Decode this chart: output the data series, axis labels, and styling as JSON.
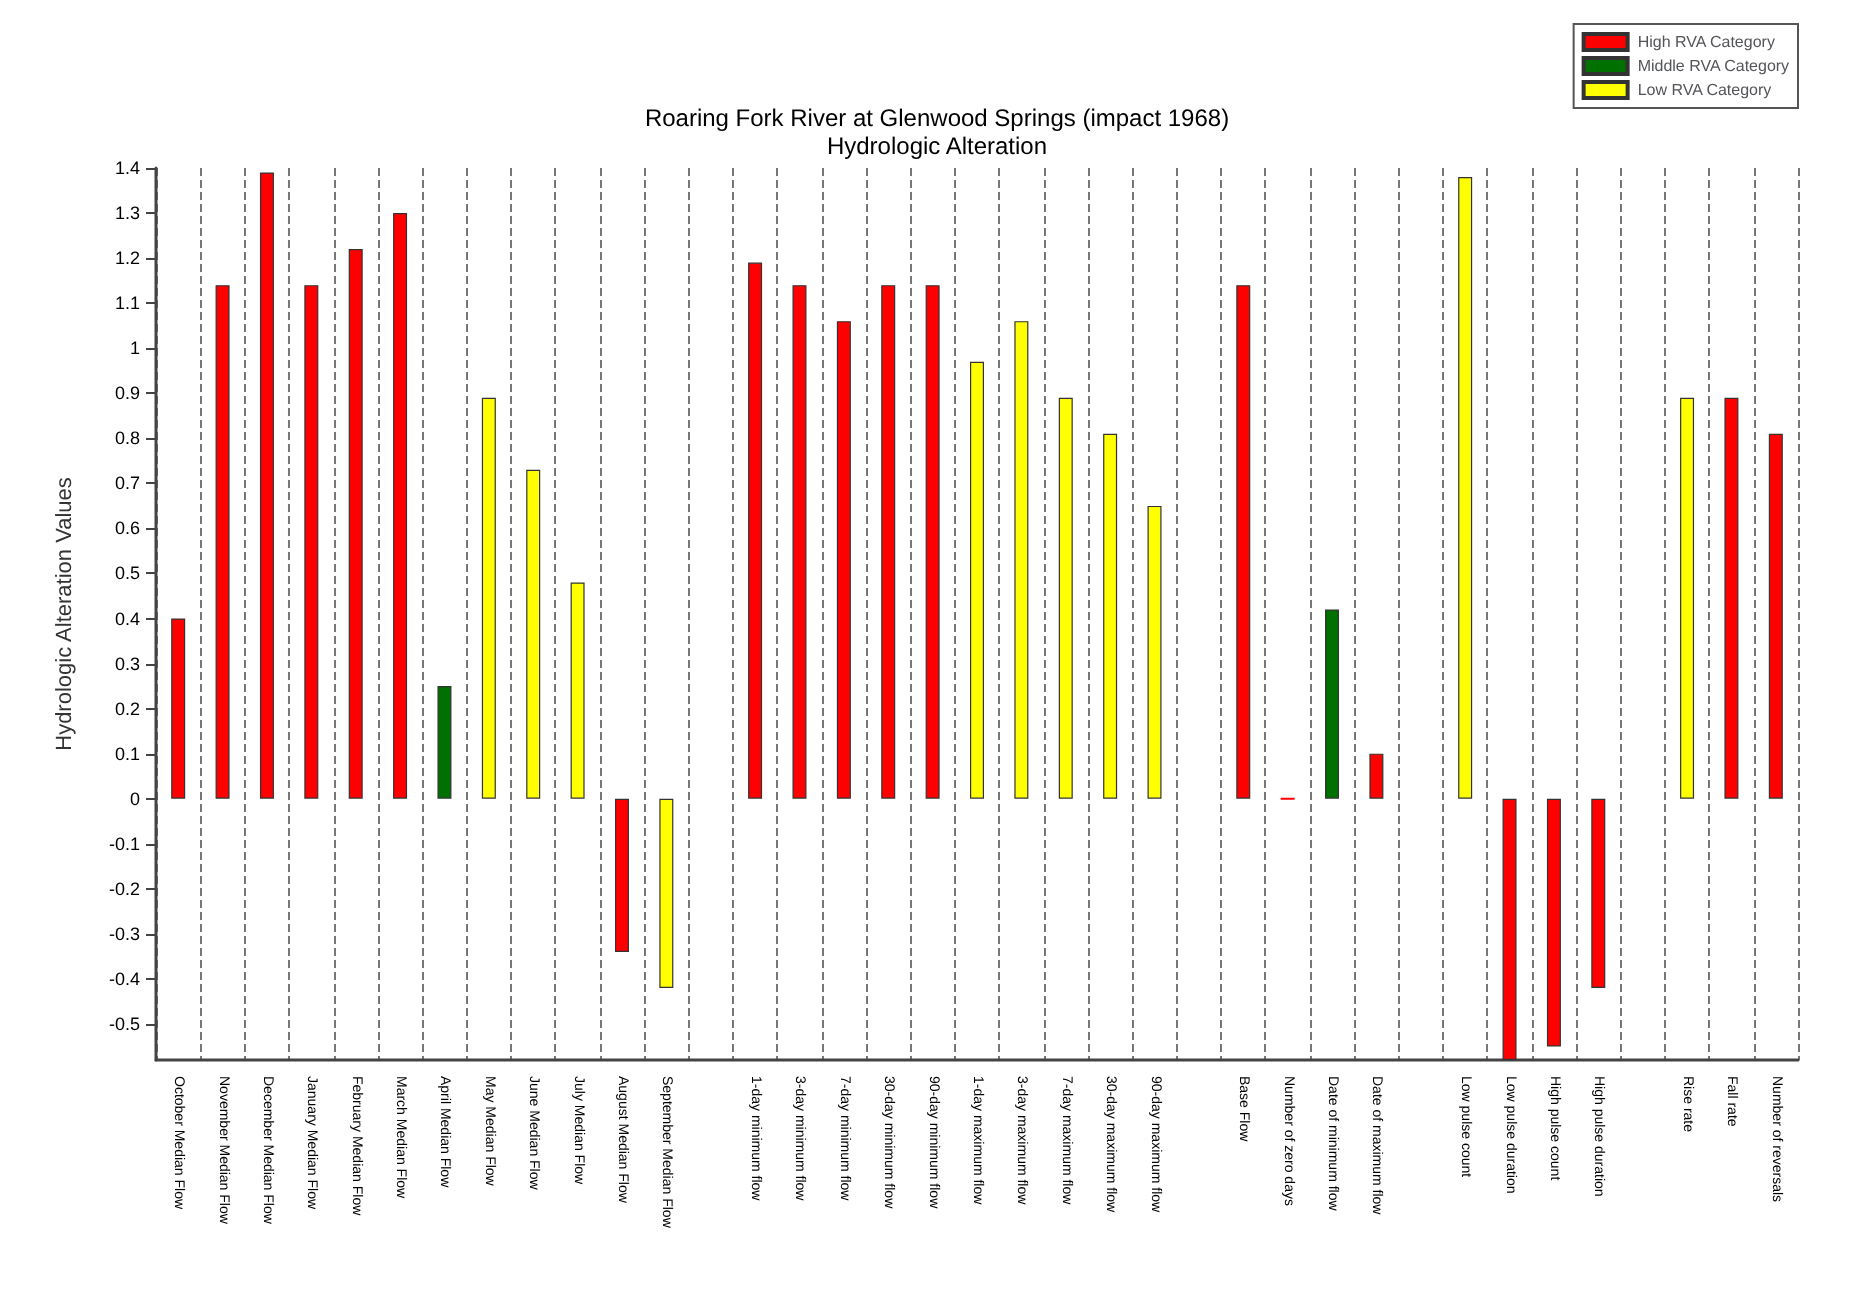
{
  "chart_data": {
    "type": "bar",
    "title": "Roaring Fork River at Glenwood Springs (impact 1968)",
    "subtitle": "Hydrologic Alteration",
    "ylabel": "Hydrologic Alteration Values",
    "categories": [
      "October Median Flow",
      "November Median Flow",
      "December Median Flow",
      "January Median Flow",
      "February Median Flow",
      "March Median Flow",
      "April Median Flow",
      "May Median Flow",
      "June Median Flow",
      "July Median Flow",
      "August Median Flow",
      "September Median Flow",
      null,
      "1-day minimum flow",
      "3-day minimum flow",
      "7-day minimum flow",
      "30-day minimum flow",
      "90-day minimum flow",
      "1-day maximum flow",
      "3-day maximum flow",
      "7-day maximum flow",
      "30-day maximum flow",
      "90-day maximum flow",
      null,
      "Base Flow",
      "Number of zero days",
      "Date of minimum flow",
      "Date of maximum flow",
      null,
      "Low pulse count",
      "Low pulse duration",
      "High pulse count",
      "High pulse duration",
      null,
      "Rise rate",
      "Fall rate",
      "Number of reversals"
    ],
    "series": [
      {
        "name": "High RVA Category",
        "color": "#ff0000",
        "values": [
          0.4,
          1.14,
          1.39,
          1.14,
          1.22,
          1.3,
          null,
          null,
          null,
          null,
          -0.34,
          null,
          null,
          1.19,
          1.14,
          1.06,
          1.14,
          1.14,
          null,
          null,
          null,
          null,
          null,
          null,
          1.14,
          0,
          null,
          0.1,
          null,
          null,
          -0.58,
          -0.55,
          -0.42,
          null,
          null,
          0.89,
          0.81
        ]
      },
      {
        "name": "Middle RVA Category",
        "color": "#007000",
        "values": [
          null,
          null,
          null,
          null,
          null,
          null,
          0.25,
          null,
          null,
          null,
          null,
          null,
          null,
          null,
          null,
          null,
          null,
          null,
          null,
          null,
          null,
          null,
          null,
          null,
          null,
          null,
          0.42,
          null,
          null,
          null,
          null,
          null,
          null,
          null,
          null,
          null,
          null
        ]
      },
      {
        "name": "Low RVA Category",
        "color": "#ffff00",
        "values": [
          null,
          null,
          null,
          null,
          null,
          null,
          null,
          0.89,
          0.73,
          0.48,
          null,
          -0.42,
          null,
          null,
          null,
          null,
          null,
          null,
          0.97,
          1.06,
          0.89,
          0.81,
          0.65,
          null,
          null,
          null,
          null,
          null,
          null,
          1.38,
          null,
          null,
          null,
          null,
          0.89,
          null,
          null
        ]
      }
    ],
    "ylim": [
      -0.58,
      1.4
    ],
    "yticks": [
      -0.5,
      -0.4,
      -0.3,
      -0.2,
      -0.1,
      0,
      0.1,
      0.2,
      0.3,
      0.4,
      0.5,
      0.6,
      0.7,
      0.8,
      0.9,
      1,
      1.1,
      1.2,
      1.3,
      1.4
    ],
    "grid": "x",
    "legend": "top right"
  }
}
